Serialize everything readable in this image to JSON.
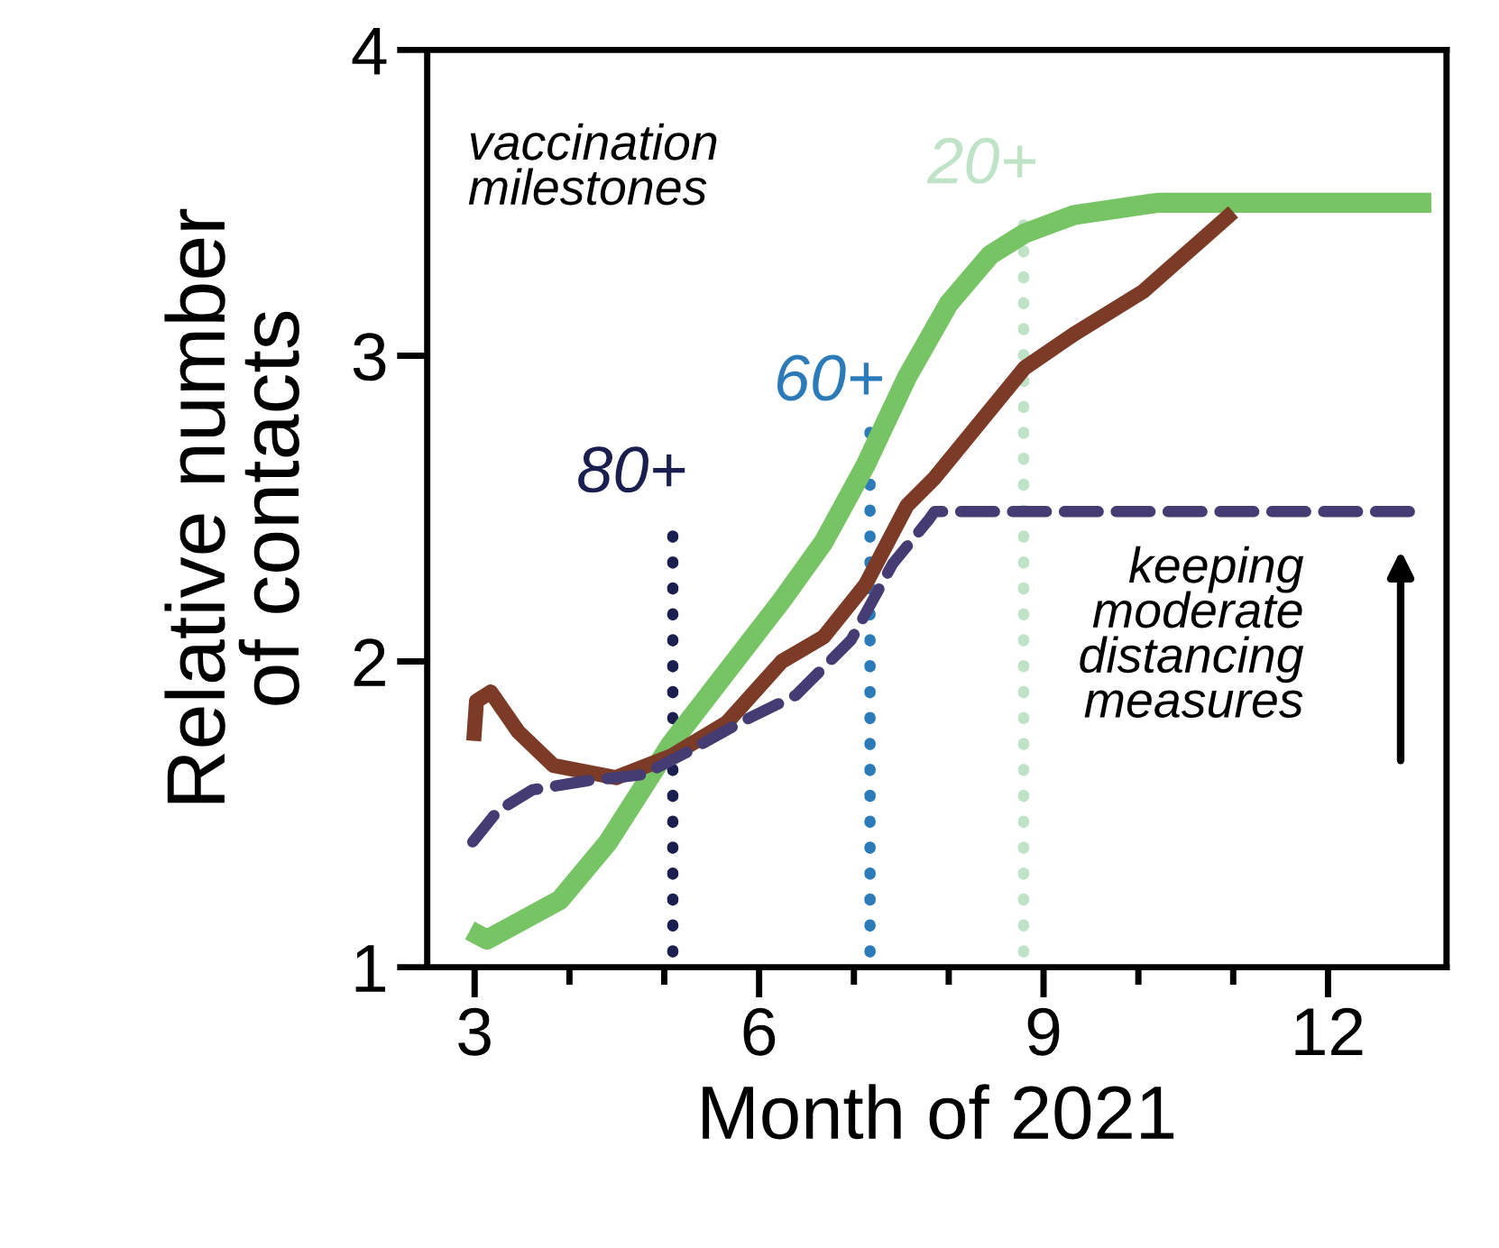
{
  "chart_data": {
    "type": "line",
    "xlabel": "Month of 2021",
    "ylabel": "Relative number\nof contacts",
    "xlim": [
      2.5,
      13.25
    ],
    "ylim": [
      1,
      4
    ],
    "xticks": [
      3,
      {
        "value": 4,
        "label": null
      },
      {
        "value": 5,
        "label": null
      },
      6,
      {
        "value": 7,
        "label": null
      },
      {
        "value": 8,
        "label": null
      },
      9,
      {
        "value": 10,
        "label": null
      },
      {
        "value": 11,
        "label": null
      },
      12
    ],
    "yticks": [
      1,
      2,
      3,
      4
    ],
    "grid": false,
    "legend": false,
    "marker": "none",
    "series": [
      {
        "color": "#77c465",
        "line_style": "solid",
        "x": [
          2.95,
          3.13,
          3.9,
          4.41,
          5.07,
          6.24,
          6.68,
          7.12,
          7.56,
          8.0,
          8.44,
          8.8,
          9.32,
          10.2,
          13.09
        ],
        "values": [
          1.12,
          1.09,
          1.22,
          1.41,
          1.73,
          2.2,
          2.39,
          2.64,
          2.93,
          3.17,
          3.33,
          3.4,
          3.46,
          3.5,
          3.5
        ]
      },
      {
        "color": "#7b3b26",
        "line_style": "solid",
        "x": [
          2.99,
          3.02,
          3.17,
          3.46,
          3.83,
          4.49,
          5.07,
          5.66,
          6.24,
          6.68,
          7.12,
          7.56,
          7.85,
          8.8,
          9.32,
          10.05,
          11.0
        ],
        "values": [
          1.74,
          1.87,
          1.9,
          1.77,
          1.66,
          1.62,
          1.69,
          1.8,
          2.0,
          2.08,
          2.25,
          2.51,
          2.6,
          2.96,
          3.07,
          3.21,
          3.47
        ]
      },
      {
        "color": "#453c73",
        "line_style": "dashed",
        "x": [
          2.98,
          3.24,
          3.61,
          4.19,
          4.78,
          5.22,
          5.8,
          6.39,
          6.97,
          7.41,
          7.78,
          7.85,
          12.9
        ],
        "values": [
          1.41,
          1.51,
          1.58,
          1.61,
          1.63,
          1.7,
          1.8,
          1.89,
          2.07,
          2.32,
          2.46,
          2.49,
          2.49
        ]
      },
      {
        "name": "80+",
        "color": "#1b1f4f",
        "line_style": "dotted",
        "x": [
          5.09,
          5.09
        ],
        "values": [
          1.05,
          2.46
        ]
      },
      {
        "name": "60+",
        "color": "#2b7bba",
        "line_style": "dotted",
        "x": [
          7.17,
          7.17
        ],
        "values": [
          1.05,
          2.76
        ]
      },
      {
        "name": "20+",
        "color": "#bfe3c6",
        "line_style": "dotted",
        "x": [
          8.79,
          8.79
        ],
        "values": [
          1.05,
          3.47
        ]
      }
    ],
    "annotations": [
      "vaccination\nmilestones",
      "keeping\nmoderate\ndistancing\nmeasures"
    ]
  }
}
